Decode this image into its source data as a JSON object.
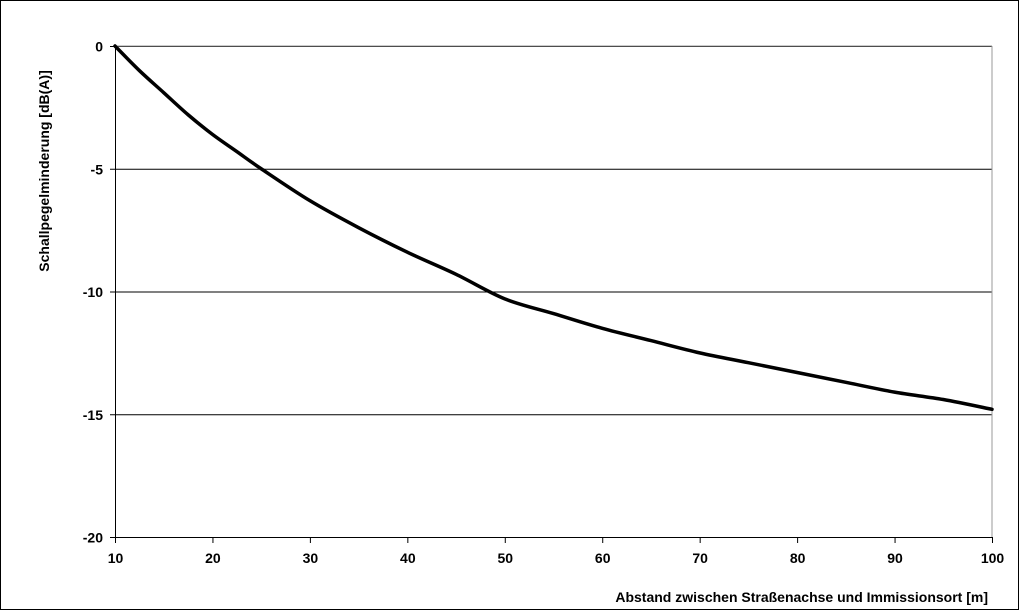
{
  "chart_data": {
    "type": "line",
    "title": "",
    "xlabel": "Abstand zwischen Straßenachse und Immissionsort [m]",
    "ylabel": "Schallpegelminderung [dB(A)]",
    "xlim": [
      10,
      100
    ],
    "ylim": [
      -20,
      0
    ],
    "xticks": [
      10,
      20,
      30,
      40,
      50,
      60,
      70,
      80,
      90,
      100
    ],
    "xtick_labels": [
      "10",
      "20",
      "30",
      "40",
      "50",
      "60",
      "70",
      "80",
      "90",
      "100"
    ],
    "yticks": [
      0,
      -5,
      -10,
      -15,
      -20
    ],
    "ytick_labels": [
      "0",
      "-5",
      "-10",
      "-15",
      "-20"
    ],
    "grid": "horizontal",
    "legend": "none",
    "series": [
      {
        "color": "#000000",
        "x": [
          10,
          12.5,
          15,
          17.5,
          20,
          22.5,
          25,
          30,
          35,
          40,
          45,
          50,
          55,
          60,
          65,
          70,
          75,
          80,
          85,
          90,
          95,
          100
        ],
        "y": [
          0,
          -1.0,
          -1.9,
          -2.8,
          -3.6,
          -4.3,
          -5.0,
          -6.3,
          -7.4,
          -8.4,
          -9.3,
          -10.3,
          -10.9,
          -11.5,
          -12.0,
          -12.5,
          -12.9,
          -13.3,
          -13.7,
          -14.1,
          -14.4,
          -14.8
        ]
      }
    ]
  }
}
